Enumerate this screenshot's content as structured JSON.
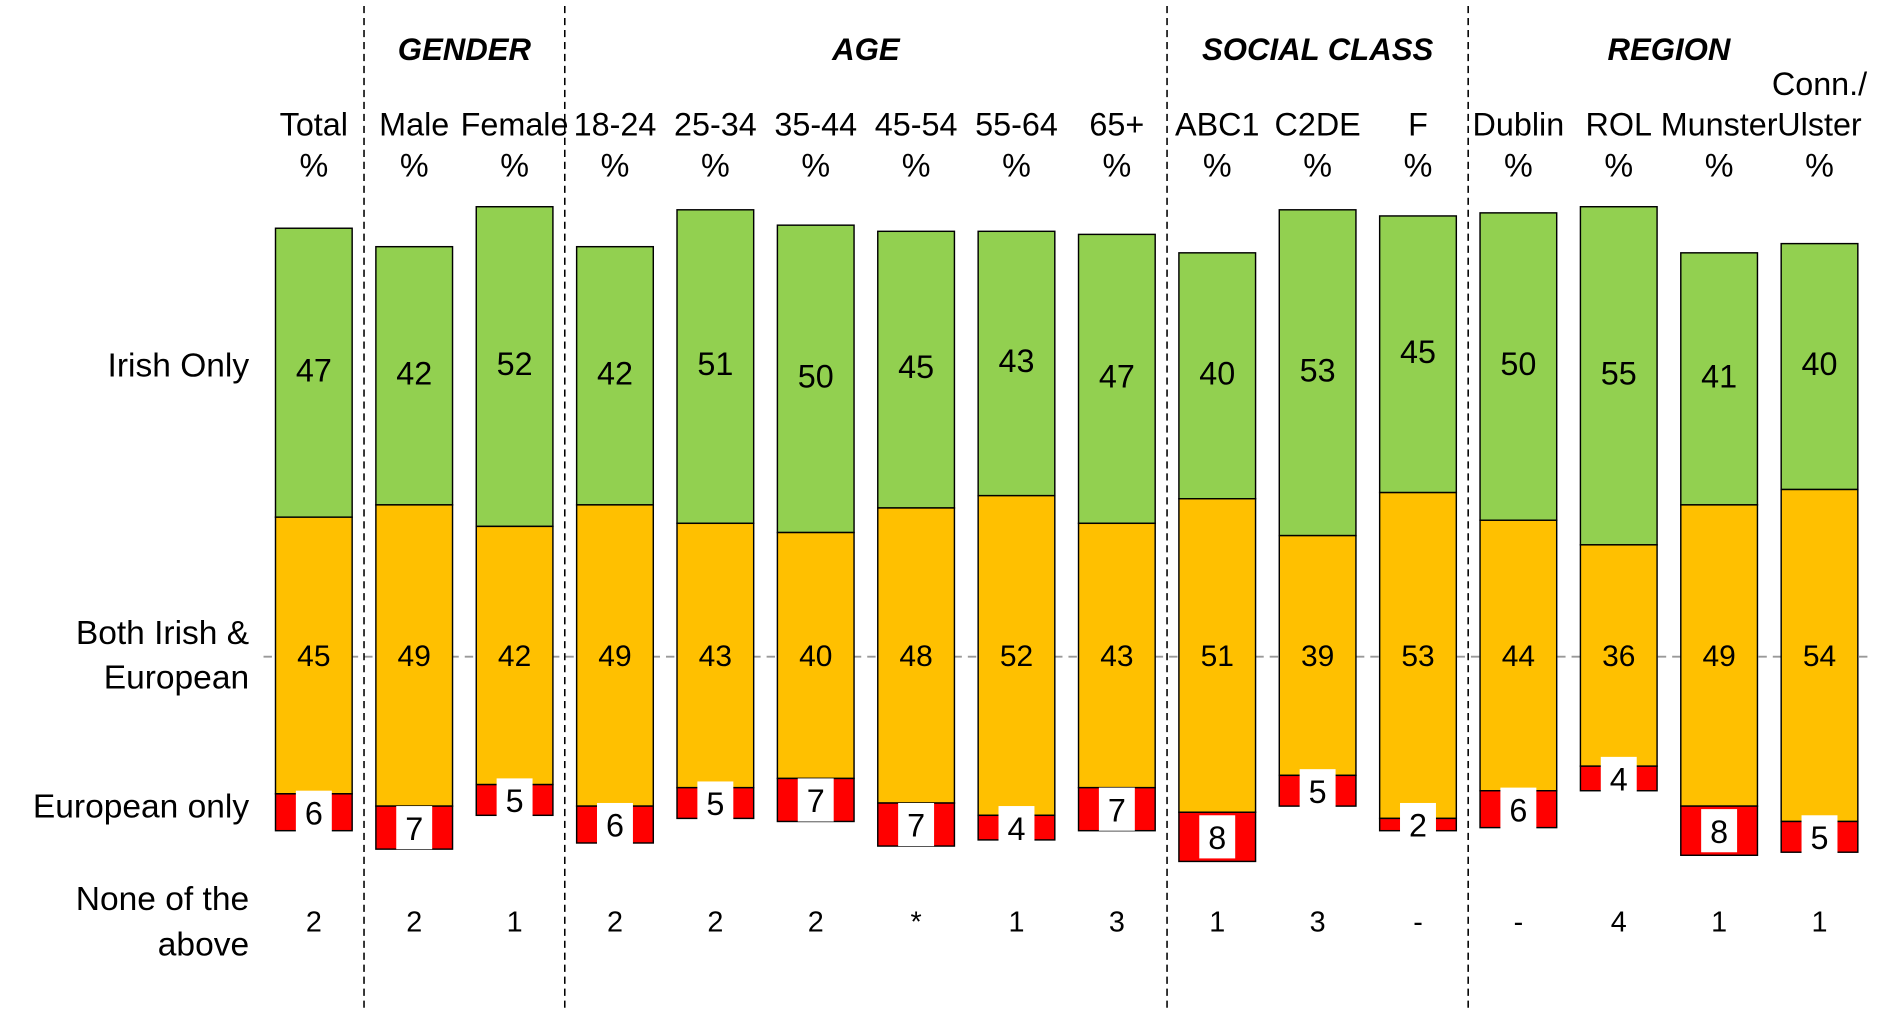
{
  "chart_data": {
    "type": "diverging-stacked-bar",
    "groups": [
      {
        "name": "GENDER",
        "start": 1,
        "end": 2
      },
      {
        "name": "AGE",
        "start": 3,
        "end": 8
      },
      {
        "name": "SOCIAL CLASS",
        "start": 9,
        "end": 11
      },
      {
        "name": "REGION",
        "start": 12,
        "end": 15
      }
    ],
    "categories": [
      [
        "Total",
        "%"
      ],
      [
        "Male",
        "%"
      ],
      [
        "Female",
        "%"
      ],
      [
        "18-24",
        "%"
      ],
      [
        "25-34",
        "%"
      ],
      [
        "35-44",
        "%"
      ],
      [
        "45-54",
        "%"
      ],
      [
        "55-64",
        "%"
      ],
      [
        "65+",
        "%"
      ],
      [
        "ABC1",
        "%"
      ],
      [
        "C2DE",
        "%"
      ],
      [
        "F",
        "%"
      ],
      [
        "Dublin",
        "%"
      ],
      [
        "ROL",
        "%"
      ],
      [
        "Munster",
        "%"
      ],
      [
        "Conn./",
        "Ulster",
        "%"
      ]
    ],
    "series": [
      {
        "name": [
          "Irish Only"
        ],
        "color": "#92d050",
        "values": [
          47,
          42,
          52,
          42,
          51,
          50,
          45,
          43,
          47,
          40,
          53,
          45,
          50,
          55,
          41,
          40
        ]
      },
      {
        "name": [
          "Both Irish &",
          "European"
        ],
        "color": "#ffc000",
        "values": [
          45,
          49,
          42,
          49,
          43,
          40,
          48,
          52,
          43,
          51,
          39,
          53,
          44,
          36,
          49,
          54
        ]
      },
      {
        "name": [
          "European only"
        ],
        "color": "#ff0000",
        "values": [
          6,
          7,
          5,
          6,
          5,
          7,
          7,
          4,
          7,
          8,
          5,
          2,
          6,
          4,
          8,
          5
        ]
      }
    ],
    "none_row": {
      "name": [
        "None of the",
        "above"
      ],
      "values": [
        2,
        2,
        1,
        2,
        2,
        2,
        "*",
        1,
        3,
        1,
        3,
        "-",
        "-",
        4,
        1,
        1
      ]
    }
  }
}
